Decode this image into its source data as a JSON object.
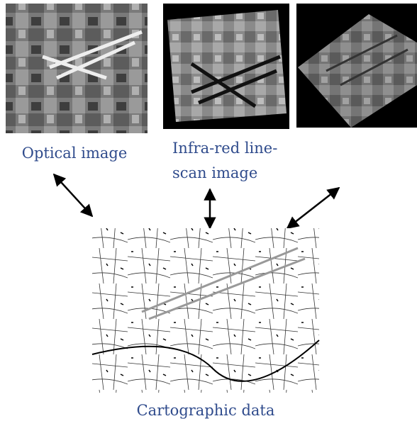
{
  "nodes": [
    {
      "label": "Optical image"
    },
    {
      "label_lines": [
        "Infra-red line-",
        "scan image"
      ]
    },
    {
      "label": "Cartographic data"
    }
  ]
}
